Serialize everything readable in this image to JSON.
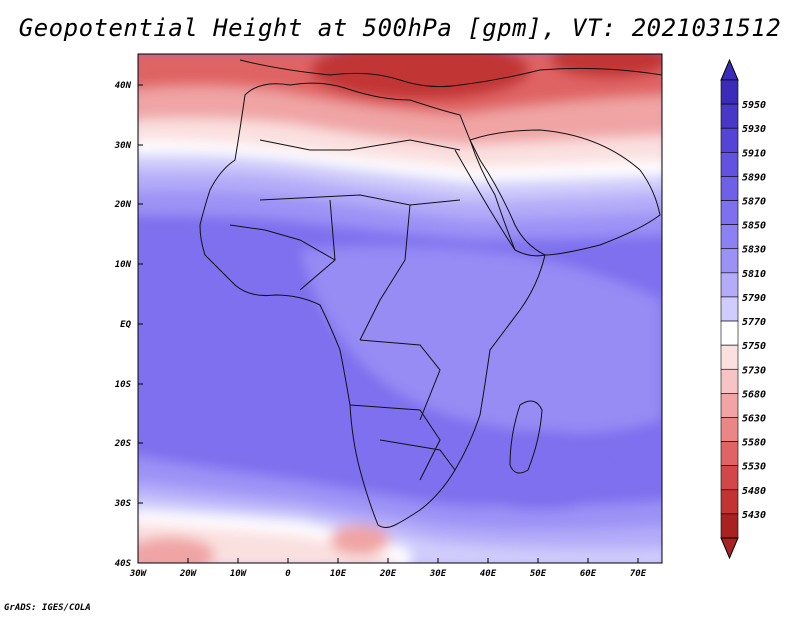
{
  "title": "Geopotential Height at 500hPa [gpm], VT: 2021031512",
  "credit": "GrADS: IGES/COLA",
  "lat_labels": [
    "40N",
    "30N",
    "20N",
    "10N",
    "EQ",
    "10S",
    "20S",
    "30S",
    "40S"
  ],
  "lon_labels": [
    "30W",
    "20W",
    "10W",
    "0",
    "10E",
    "20E",
    "30E",
    "40E",
    "50E",
    "60E",
    "70E"
  ],
  "colorbar": {
    "levels": [
      "5950",
      "5930",
      "5910",
      "5890",
      "5870",
      "5850",
      "5830",
      "5810",
      "5790",
      "5770",
      "5750",
      "5730",
      "5680",
      "5630",
      "5580",
      "5530",
      "5480",
      "5430"
    ],
    "colors": [
      "#3a2cb8",
      "#4738c8",
      "#5545d6",
      "#6252e0",
      "#7060e8",
      "#7e70ee",
      "#8c80f2",
      "#9c92f6",
      "#b4acf8",
      "#d0ccfb",
      "#ffffff",
      "#fbe0e0",
      "#f6c4c4",
      "#f0a4a4",
      "#ea8686",
      "#e06464",
      "#d24848",
      "#c23434",
      "#a82222"
    ]
  },
  "map_colors": {
    "deep_red": "#c23434",
    "red": "#e06464",
    "pink": "#f0a4a4",
    "light_pink": "#fbe0e0",
    "white": "#ffffff",
    "pale_blue": "#d0ccfb",
    "light_blue": "#b4acf8",
    "mid_blue": "#9c92f6",
    "blue": "#8c80f2",
    "deep_blue": "#7e70ee"
  }
}
